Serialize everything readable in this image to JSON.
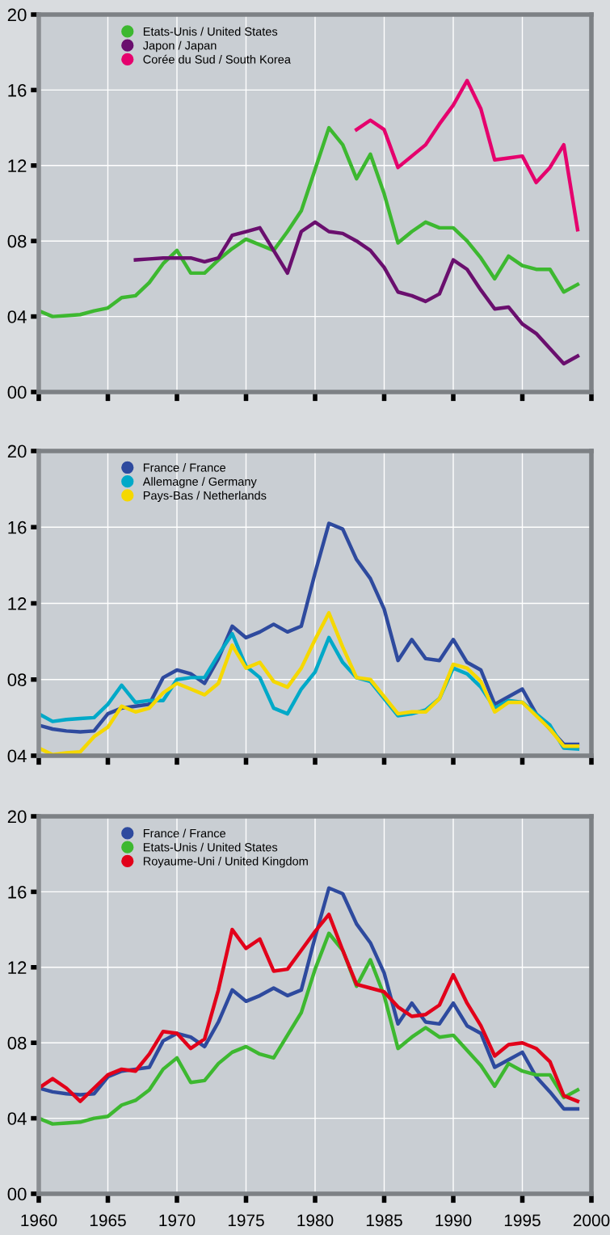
{
  "chart_data": [
    {
      "type": "line",
      "x": [
        1960,
        1961,
        1962,
        1963,
        1964,
        1965,
        1966,
        1967,
        1968,
        1969,
        1970,
        1971,
        1972,
        1973,
        1974,
        1975,
        1976,
        1977,
        1978,
        1979,
        1980,
        1981,
        1982,
        1983,
        1984,
        1985,
        1986,
        1987,
        1988,
        1989,
        1990,
        1991,
        1992,
        1993,
        1994,
        1995,
        1996,
        1997,
        1998,
        1999
      ],
      "series": [
        {
          "name": "Etats-Unis / United States",
          "color": "#3db830",
          "values": [
            4.3,
            4.0,
            4.05,
            4.1,
            4.3,
            4.45,
            5.0,
            5.1,
            5.8,
            6.8,
            7.5,
            6.3,
            6.3,
            7.0,
            7.6,
            8.1,
            7.8,
            7.5,
            8.5,
            9.6,
            11.8,
            14.0,
            13.1,
            11.3,
            12.6,
            10.5,
            7.9,
            8.5,
            9.0,
            8.7,
            8.7,
            8.0,
            7.1,
            6.0,
            7.2,
            6.7,
            6.5,
            6.5,
            5.3,
            5.7
          ]
        },
        {
          "name": "Japon / Japan",
          "color": "#6a0f6e",
          "values": [
            null,
            null,
            null,
            null,
            null,
            null,
            null,
            7.0,
            7.05,
            7.1,
            7.1,
            7.1,
            6.9,
            7.1,
            8.3,
            8.5,
            8.7,
            7.5,
            6.3,
            8.5,
            9.0,
            8.5,
            8.4,
            8.0,
            7.5,
            6.6,
            5.3,
            5.1,
            4.8,
            5.2,
            7.0,
            6.5,
            5.4,
            4.4,
            4.5,
            3.6,
            3.1,
            2.3,
            1.5,
            1.9
          ]
        },
        {
          "name": "Corée du Sud / South Korea",
          "color": "#e5006d",
          "values": [
            null,
            null,
            null,
            null,
            null,
            null,
            null,
            null,
            null,
            null,
            null,
            null,
            null,
            null,
            null,
            null,
            null,
            null,
            null,
            null,
            null,
            null,
            null,
            13.9,
            14.4,
            13.9,
            11.9,
            12.5,
            13.1,
            14.2,
            15.2,
            16.5,
            15.0,
            12.3,
            12.4,
            12.5,
            11.1,
            11.9,
            13.1,
            8.6
          ]
        }
      ],
      "xlim": [
        1960,
        2000
      ],
      "xticks": [
        1960,
        1965,
        1970,
        1975,
        1980,
        1985,
        1990,
        1995,
        2000
      ],
      "ylim": [
        0,
        20
      ],
      "yticks": [
        {
          "value": 0,
          "label": "00"
        },
        {
          "value": 4,
          "label": "04"
        },
        {
          "value": 8,
          "label": "08"
        },
        12,
        16,
        20
      ],
      "tick_labels": "y",
      "grid": true,
      "legend": "top left"
    },
    {
      "type": "line",
      "x": [
        1960,
        1961,
        1962,
        1963,
        1964,
        1965,
        1966,
        1967,
        1968,
        1969,
        1970,
        1971,
        1972,
        1973,
        1974,
        1975,
        1976,
        1977,
        1978,
        1979,
        1980,
        1981,
        1982,
        1983,
        1984,
        1985,
        1986,
        1987,
        1988,
        1989,
        1990,
        1991,
        1992,
        1993,
        1994,
        1995,
        1996,
        1997,
        1998,
        1999
      ],
      "series": [
        {
          "name": "France / France",
          "color": "#2e4a9e",
          "values": [
            5.6,
            5.4,
            5.3,
            5.25,
            5.3,
            6.2,
            6.5,
            6.6,
            6.7,
            8.1,
            8.5,
            8.3,
            7.8,
            9.1,
            10.8,
            10.2,
            10.5,
            10.9,
            10.5,
            10.8,
            13.6,
            16.2,
            15.9,
            14.3,
            13.3,
            11.7,
            9.0,
            10.1,
            9.1,
            9.0,
            10.1,
            8.9,
            8.5,
            6.7,
            7.1,
            7.5,
            6.2,
            5.4,
            4.6,
            4.6
          ]
        },
        {
          "name": "Allemagne / Germany",
          "color": "#00a9c8",
          "values": [
            6.2,
            5.8,
            5.9,
            5.95,
            6.0,
            6.7,
            7.7,
            6.8,
            6.9,
            6.9,
            8.0,
            8.1,
            8.1,
            9.3,
            10.4,
            8.7,
            8.1,
            6.5,
            6.2,
            7.5,
            8.4,
            10.2,
            8.9,
            8.1,
            7.9,
            7.0,
            6.1,
            6.2,
            6.4,
            7.0,
            8.6,
            8.3,
            7.6,
            6.5,
            6.9,
            6.8,
            6.2,
            5.6,
            4.4,
            4.35
          ]
        },
        {
          "name": "Pays-Bas / Netherlands",
          "color": "#f5d800",
          "values": [
            4.4,
            4.05,
            4.15,
            4.2,
            5.0,
            5.5,
            6.6,
            6.3,
            6.5,
            7.3,
            7.8,
            7.5,
            7.2,
            7.8,
            9.8,
            8.6,
            8.9,
            7.9,
            7.6,
            8.6,
            10.1,
            11.5,
            9.7,
            8.1,
            8.0,
            7.1,
            6.2,
            6.3,
            6.3,
            7.0,
            8.8,
            8.6,
            7.9,
            6.3,
            6.8,
            6.8,
            6.1,
            5.4,
            4.5,
            4.5
          ]
        }
      ],
      "xlim": [
        1960,
        2000
      ],
      "xticks": [
        1960,
        1965,
        1970,
        1975,
        1980,
        1985,
        1990,
        1995,
        2000
      ],
      "ylim": [
        4,
        20
      ],
      "yticks": [
        {
          "value": 4,
          "label": "04"
        },
        {
          "value": 8,
          "label": "08"
        },
        12,
        16,
        20
      ],
      "tick_labels": "y",
      "grid": true,
      "legend": "top left"
    },
    {
      "type": "line",
      "x": [
        1960,
        1961,
        1962,
        1963,
        1964,
        1965,
        1966,
        1967,
        1968,
        1969,
        1970,
        1971,
        1972,
        1973,
        1974,
        1975,
        1976,
        1977,
        1978,
        1979,
        1980,
        1981,
        1982,
        1983,
        1984,
        1985,
        1986,
        1987,
        1988,
        1989,
        1990,
        1991,
        1992,
        1993,
        1994,
        1995,
        1996,
        1997,
        1998,
        1999
      ],
      "series": [
        {
          "name": "France / France",
          "color": "#2e4a9e",
          "values": [
            5.6,
            5.4,
            5.3,
            5.25,
            5.3,
            6.2,
            6.5,
            6.6,
            6.7,
            8.1,
            8.5,
            8.3,
            7.8,
            9.1,
            10.8,
            10.2,
            10.5,
            10.9,
            10.5,
            10.8,
            13.6,
            16.2,
            15.9,
            14.3,
            13.3,
            11.7,
            9.0,
            10.1,
            9.1,
            9.0,
            10.1,
            8.9,
            8.5,
            6.7,
            7.1,
            7.5,
            6.2,
            5.4,
            4.5,
            4.5
          ]
        },
        {
          "name": "Etats-Unis / United States",
          "color": "#3db830",
          "values": [
            4.0,
            3.7,
            3.75,
            3.8,
            4.0,
            4.1,
            4.7,
            4.95,
            5.5,
            6.6,
            7.2,
            5.9,
            6.0,
            6.9,
            7.5,
            7.8,
            7.4,
            7.2,
            8.4,
            9.6,
            11.9,
            13.8,
            12.9,
            11.0,
            12.4,
            10.5,
            7.7,
            8.3,
            8.8,
            8.3,
            8.4,
            7.6,
            6.8,
            5.7,
            6.9,
            6.5,
            6.3,
            6.3,
            5.1,
            5.5
          ]
        },
        {
          "name": "Royaume-Uni / United Kingdom",
          "color": "#e2001a",
          "values": [
            5.6,
            6.1,
            5.6,
            4.9,
            5.6,
            6.3,
            6.6,
            6.5,
            7.4,
            8.6,
            8.5,
            7.7,
            8.2,
            10.8,
            14.0,
            13.0,
            13.5,
            11.8,
            11.9,
            12.9,
            13.9,
            14.8,
            12.9,
            11.1,
            10.9,
            10.7,
            9.9,
            9.4,
            9.5,
            10.0,
            11.6,
            10.1,
            8.9,
            7.3,
            7.9,
            8.0,
            7.7,
            7.0,
            5.2,
            4.9
          ]
        }
      ],
      "xlim": [
        1960,
        2000
      ],
      "xticks": [
        1960,
        1965,
        1970,
        1975,
        1980,
        1985,
        1990,
        1995,
        2000
      ],
      "ylim": [
        0,
        20
      ],
      "yticks": [
        {
          "value": 0,
          "label": "00"
        },
        {
          "value": 4,
          "label": "04"
        },
        {
          "value": 8,
          "label": "08"
        },
        12,
        16,
        20
      ],
      "grid": true,
      "legend": "top left"
    }
  ]
}
